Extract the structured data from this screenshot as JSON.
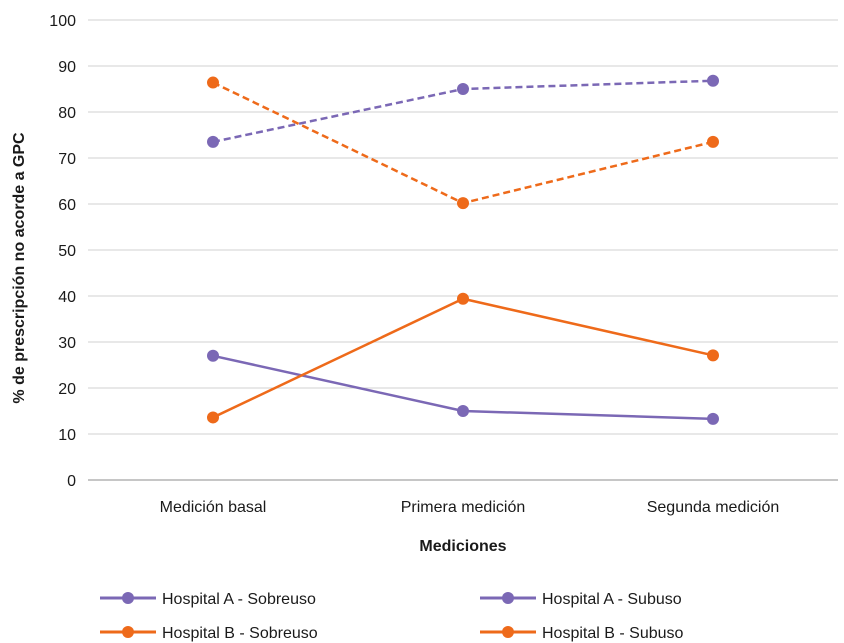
{
  "chart_data": {
    "type": "line",
    "categories": [
      "Medición basal",
      "Primera medición",
      "Segunda medición"
    ],
    "title": "",
    "xlabel": "Mediciones",
    "ylabel": "% de prescripción no acorde a GPC",
    "ylim": [
      0,
      100
    ],
    "yticks": [
      0,
      10,
      20,
      30,
      40,
      50,
      60,
      70,
      80,
      90,
      100
    ],
    "grid": true,
    "legend_position": "bottom",
    "series": [
      {
        "name": "Hospital A - Sobreuso",
        "values": [
          27,
          15,
          13.3
        ],
        "color": "#7b68b5",
        "dash": false
      },
      {
        "name": "Hospital A - Subuso",
        "values": [
          73.5,
          85,
          86.8
        ],
        "color": "#7b68b5",
        "dash": true
      },
      {
        "name": "Hospital B - Sobreuso",
        "values": [
          13.6,
          39.4,
          27.1
        ],
        "color": "#ee6a1a",
        "dash": false
      },
      {
        "name": "Hospital B - Subuso",
        "values": [
          86.4,
          60.2,
          73.5
        ],
        "color": "#ee6a1a",
        "dash": true
      }
    ]
  }
}
